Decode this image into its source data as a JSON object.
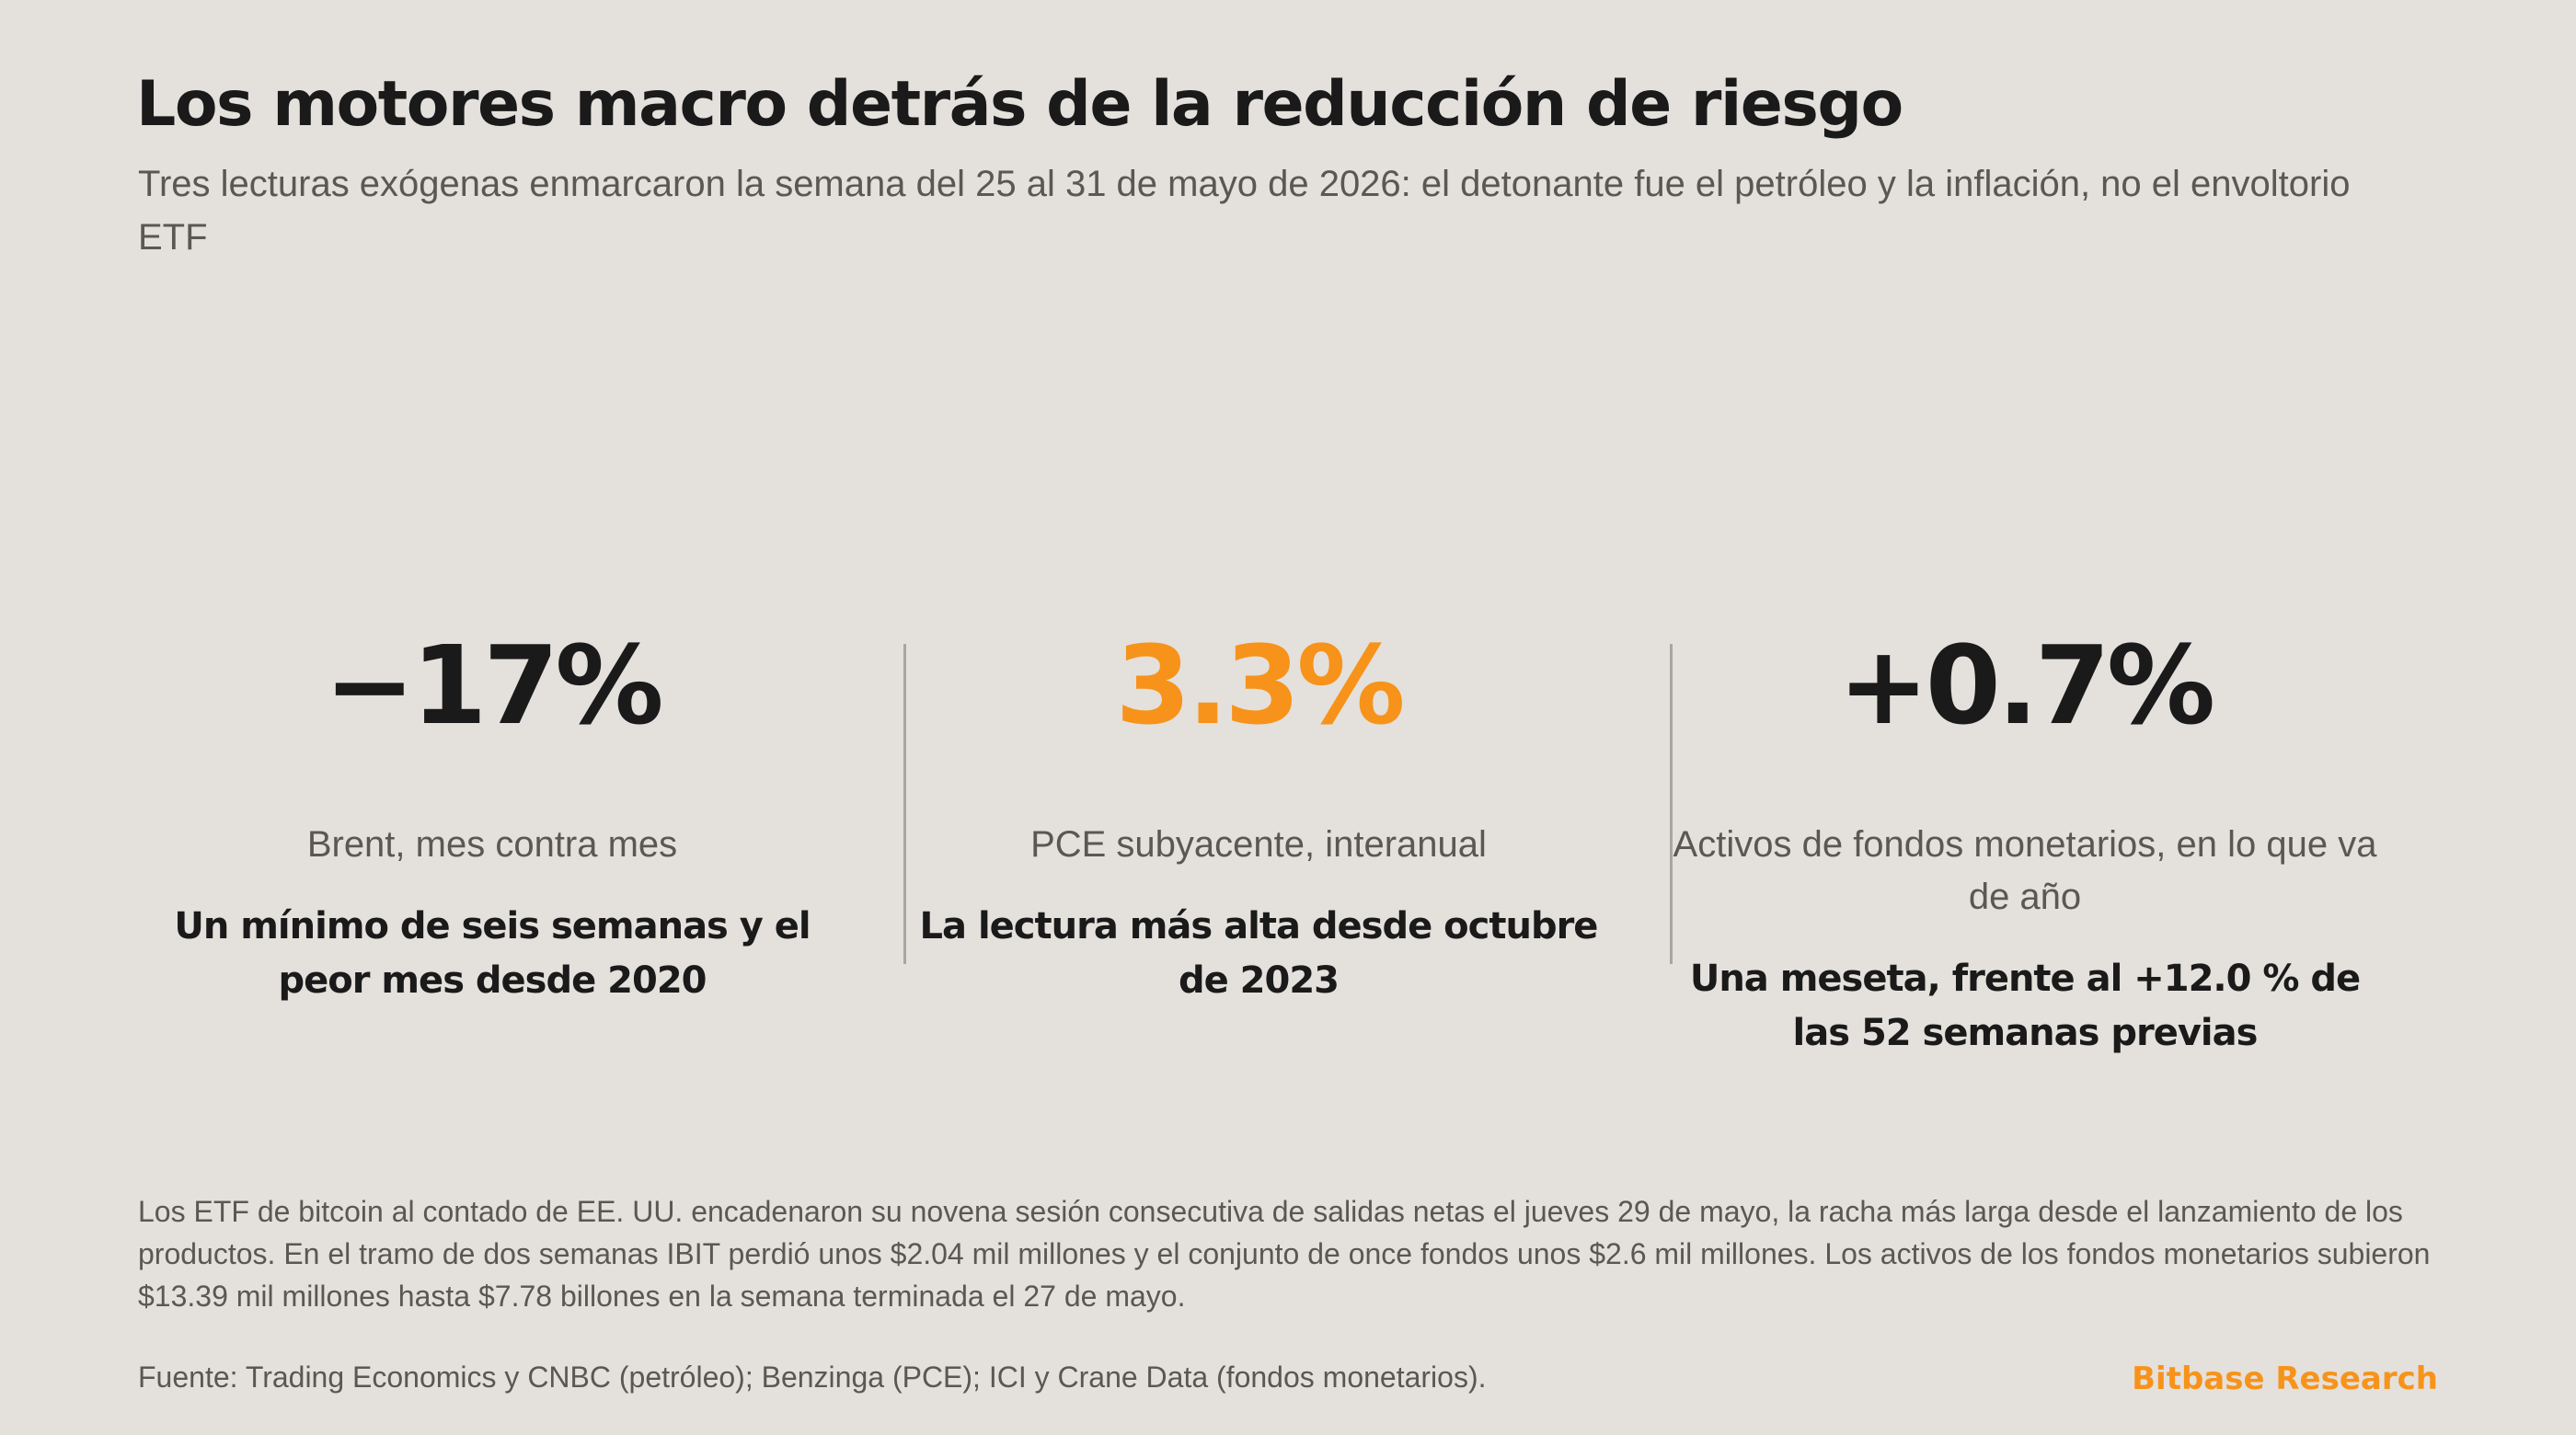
{
  "header": {
    "title": "Los motores macro detrás de la reducción de riesgo",
    "subtitle": "Tres lecturas exógenas enmarcaron la semana del 25 al 31 de mayo de 2026: el detonante fue el petróleo y la inflación, no el envoltorio ETF"
  },
  "stats": [
    {
      "value": "−17%",
      "label": "Brent, mes contra mes",
      "note": "Un mínimo de seis semanas y el peor mes desde 2020"
    },
    {
      "value": "3.3%",
      "label": "PCE subyacente, interanual",
      "note": "La lectura más alta desde octubre de 2023"
    },
    {
      "value": "+0.7%",
      "label": "Activos de fondos monetarios, en lo que va de año",
      "note": "Una meseta, frente al +12.0 % de las 52 semanas previas"
    }
  ],
  "footer": {
    "body": "Los ETF de bitcoin al contado de EE. UU. encadenaron su novena sesión consecutiva de salidas netas el jueves 29 de mayo, la racha más larga desde el lanzamiento de los productos. En el tramo de dos semanas IBIT perdió unos $2.04 mil millones y el conjunto de once fondos unos $2.6 mil millones. Los activos de los fondos monetarios subieron $13.39 mil millones hasta $7.78 billones en la semana terminada el 27 de mayo.",
    "source": "Fuente: Trading Economics y CNBC (petróleo); Benzinga (PCE); ICI y Crane Data (fondos monetarios).",
    "brand": "Bitbase Research"
  },
  "colors": {
    "background": "#e4e0dc",
    "accent": "#f7931a",
    "text_primary": "#1a1a1a",
    "text_secondary": "#5a5854",
    "divider": "#a9a5a0"
  }
}
